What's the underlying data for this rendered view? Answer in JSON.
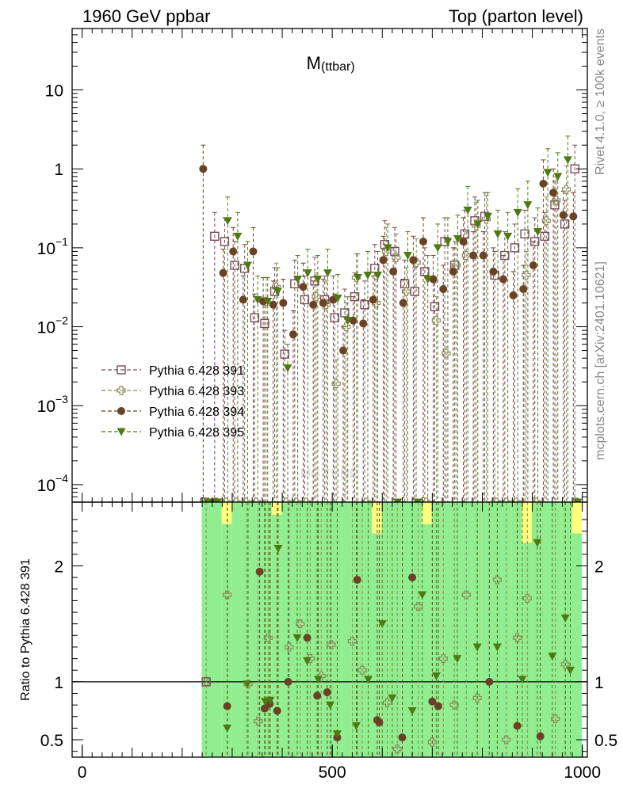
{
  "header": {
    "left_label": "1960 GeV ppbar",
    "right_label": "Top (parton level)",
    "side_label_top": "Rivet 4.1.0, ≥ 100k events",
    "side_label_bottom": "mcplots.cern.ch [arXiv:2401.10621]",
    "watermark": "MC TUNE"
  },
  "chart_data": [
    {
      "type": "scatter",
      "title": "M",
      "title_sub": "(ttbar)",
      "yscale": "log",
      "xlim": [
        -20,
        1010
      ],
      "ylim": [
        6e-05,
        60
      ],
      "xlabel": "",
      "ylabel": "",
      "ytick_labels": [
        {
          "value": 10,
          "mant": "10",
          "exp": ""
        },
        {
          "value": 1,
          "mant": "1",
          "exp": ""
        },
        {
          "value": 0.1,
          "mant": "10",
          "exp": "−1"
        },
        {
          "value": 0.01,
          "mant": "10",
          "exp": "−2"
        },
        {
          "value": 0.001,
          "mant": "10",
          "exp": "−3"
        },
        {
          "value": 0.0001,
          "mant": "10",
          "exp": "−4"
        }
      ],
      "legend_position": "middle-left",
      "series": [
        {
          "name": "Pythia 6.428 391",
          "marker": "open-square",
          "color": "#7a4b5e",
          "x": [
            245,
            265,
            285,
            305,
            325,
            345,
            365,
            385,
            405,
            425,
            445,
            465,
            485,
            505,
            525,
            545,
            565,
            585,
            605,
            625,
            645,
            665,
            685,
            705,
            725,
            745,
            765,
            785,
            805,
            825,
            845,
            865,
            885,
            905,
            925,
            945,
            965,
            985
          ],
          "y": [
            0.0,
            0.14,
            0.12,
            0.06,
            0.055,
            0.013,
            0.011,
            0.028,
            0.0045,
            0.035,
            0.022,
            0.038,
            0.022,
            0.013,
            0.015,
            0.024,
            0.019,
            0.055,
            0.11,
            0.09,
            0.035,
            0.028,
            0.05,
            0.018,
            0.12,
            0.06,
            0.15,
            0.22,
            0.25,
            0.045,
            0.08,
            0.1,
            0.15,
            0.12,
            0.14,
            0.35,
            0.2,
            1.0
          ]
        },
        {
          "name": "Pythia 6.428 393",
          "marker": "open-cross",
          "color": "#8c8a57",
          "x": [
            248,
            268,
            288,
            308,
            328,
            348,
            368,
            388,
            408,
            428,
            448,
            468,
            488,
            508,
            528,
            548,
            568,
            588,
            608,
            628,
            648,
            668,
            688,
            708,
            728,
            748,
            768,
            788,
            808,
            828,
            848,
            868,
            888,
            908,
            928,
            948,
            968,
            988
          ],
          "y": [
            0.0,
            0.0,
            0.0,
            0.0,
            0.0,
            0.0,
            0.021,
            0.032,
            0.0,
            0.0,
            0.0,
            0.024,
            0.019,
            0.0019,
            0.01,
            0.042,
            0.0,
            0.02,
            0.09,
            0.075,
            0.028,
            0.065,
            0.0,
            0.012,
            0.0046,
            0.06,
            0.08,
            0.19,
            0.23,
            0.0,
            0.0,
            0.0,
            0.045,
            0.0,
            0.22,
            0.4,
            0.55,
            0.0
          ]
        },
        {
          "name": "Pythia 6.428 394",
          "marker": "filled-circle",
          "color": "#6b4226",
          "x": [
            242,
            262,
            282,
            302,
            322,
            342,
            362,
            382,
            402,
            422,
            442,
            462,
            482,
            502,
            522,
            542,
            562,
            582,
            602,
            622,
            642,
            662,
            682,
            702,
            722,
            742,
            762,
            782,
            802,
            822,
            842,
            862,
            882,
            902,
            922,
            942,
            962,
            982
          ],
          "y": [
            1.0,
            0.0,
            0.048,
            0.09,
            0.022,
            0.09,
            0.021,
            0.019,
            0.02,
            0.008,
            0.032,
            0.019,
            0.02,
            0.022,
            0.005,
            0.012,
            0.011,
            0.022,
            0.07,
            0.05,
            0.02,
            0.07,
            0.12,
            0.04,
            0.03,
            0.05,
            0.12,
            0.08,
            0.08,
            0.05,
            0.04,
            0.025,
            0.03,
            0.06,
            0.65,
            0.5,
            0.26,
            0.25
          ]
        },
        {
          "name": "Pythia 6.428 395",
          "marker": "filled-triangle-down",
          "color": "#4f7a13",
          "x": [
            251,
            271,
            291,
            311,
            331,
            351,
            371,
            391,
            411,
            431,
            451,
            471,
            491,
            511,
            531,
            551,
            571,
            591,
            611,
            631,
            651,
            671,
            691,
            711,
            731,
            751,
            771,
            791,
            811,
            831,
            851,
            871,
            891,
            911,
            931,
            951,
            971,
            991
          ],
          "y": [
            0.0,
            0.0,
            0.22,
            0.14,
            0.06,
            0.022,
            0.021,
            0.028,
            0.003,
            0.04,
            0.048,
            0.04,
            0.048,
            0.023,
            0.012,
            0.042,
            0.045,
            0.045,
            0.1,
            0.0,
            0.08,
            0.0,
            0.04,
            0.1,
            0.12,
            0.13,
            0.3,
            0.2,
            0.25,
            0.15,
            0.14,
            0.28,
            0.35,
            0.16,
            0.9,
            0.8,
            1.3,
            0.0
          ]
        }
      ]
    },
    {
      "type": "scatter",
      "title": "",
      "ylabel": "Ratio to Pythia 6.428 391",
      "xlim": [
        -20,
        1010
      ],
      "ylim": [
        0.35,
        2.55
      ],
      "xtick_labels": [
        "0",
        "500",
        "1000"
      ],
      "xtick_values": [
        0,
        500,
        1000
      ],
      "ytick_labels": [
        "0.5",
        "1",
        "2"
      ],
      "ytick_values": [
        0.5,
        1,
        2
      ],
      "reference_line": 1,
      "band_colors": {
        "green": "#90ee90",
        "yellow": "#ffff80"
      },
      "series": [
        {
          "name": "Pythia 6.428 393",
          "marker": "open-cross",
          "color": "#8c8a57",
          "x": [
            248,
            290,
            332,
            352,
            372,
            414,
            436,
            456,
            478,
            498,
            540,
            560,
            610,
            630,
            672,
            700,
            722,
            744,
            768,
            790,
            830,
            848,
            870,
            890,
            946,
            966
          ],
          "y": [
            1.0,
            1.75,
            0.98,
            0.66,
            1.38,
            1.3,
            1.5,
            1.2,
            1.05,
            1.32,
            1.35,
            1.1,
            0.82,
            0.42,
            1.65,
            0.48,
            1.2,
            0.8,
            1.75,
            0.86,
            1.88,
            0.5,
            1.38,
            1.72,
            0.68,
            1.15
          ]
        },
        {
          "name": "Pythia 6.428 394",
          "marker": "filled-circle",
          "color": "#6b4226",
          "x": [
            290,
            355,
            365,
            375,
            390,
            412,
            450,
            470,
            490,
            510,
            550,
            590,
            594,
            640,
            660,
            700,
            712,
            814,
            870,
            916
          ],
          "y": [
            0.79,
            1.95,
            0.77,
            0.81,
            0.75,
            1.0,
            1.38,
            0.88,
            0.91,
            0.52,
            1.88,
            0.67,
            0.65,
            0.52,
            1.9,
            0.83,
            0.79,
            1.0,
            0.62,
            0.53
          ]
        },
        {
          "name": "Pythia 6.428 395",
          "marker": "filled-triangle-down",
          "color": "#4f7a13",
          "x": [
            290,
            330,
            366,
            376,
            392,
            430,
            450,
            472,
            496,
            510,
            548,
            572,
            600,
            620,
            660,
            680,
            708,
            750,
            790,
            830,
            880,
            910,
            940,
            966,
            976
          ],
          "y": [
            0.6,
            0.98,
            0.83,
            0.84,
            2.15,
            1.38,
            1.18,
            1.02,
            0.8,
            0.55,
            0.62,
            1.02,
            1.5,
            0.86,
            0.75,
            1.75,
            1.05,
            1.2,
            1.3,
            1.3,
            1.02,
            2.2,
            1.22,
            1.55,
            1.1
          ]
        }
      ]
    }
  ]
}
